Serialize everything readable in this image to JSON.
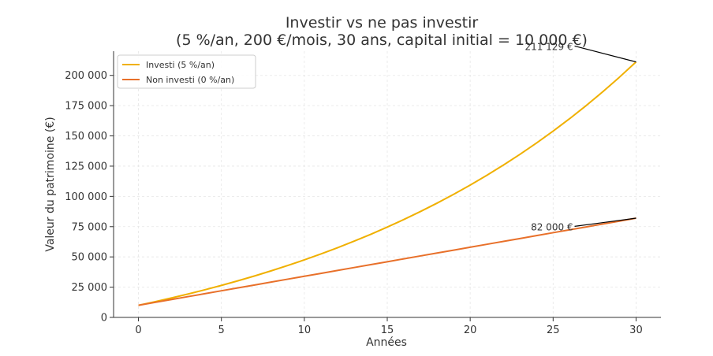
{
  "chart_data": {
    "type": "line",
    "title_line1": "Investir vs ne pas investir",
    "title_line2": "(5 %/an, 200 €/mois, 30 ans, capital initial = 10 000 €)",
    "xlabel": "Années",
    "ylabel": "Valeur du patrimoine (€)",
    "xlim": [
      -1.5,
      31.5
    ],
    "ylim": [
      0,
      220000
    ],
    "xticks": [
      0,
      5,
      10,
      15,
      20,
      25,
      30
    ],
    "xtick_labels": [
      "0",
      "5",
      "10",
      "15",
      "20",
      "25",
      "30"
    ],
    "yticks": [
      0,
      25000,
      50000,
      75000,
      100000,
      125000,
      150000,
      175000,
      200000
    ],
    "ytick_labels": [
      "0",
      "25 000",
      "50 000",
      "75 000",
      "100 000",
      "125 000",
      "150 000",
      "175 000",
      "200 000"
    ],
    "grid": true,
    "legend_position": "top-left",
    "x": [
      0,
      1,
      2,
      3,
      4,
      5,
      6,
      7,
      8,
      9,
      10,
      11,
      12,
      13,
      14,
      15,
      16,
      17,
      18,
      19,
      20,
      21,
      22,
      23,
      24,
      25,
      26,
      27,
      28,
      29,
      30
    ],
    "series": [
      {
        "name": "Investi (5 %/an)",
        "color": "#f0b000",
        "values": [
          10000,
          12970,
          16092,
          19373,
          22822,
          26447,
          30257,
          34262,
          38472,
          42897,
          47548,
          52437,
          57576,
          62978,
          68656,
          74624,
          80898,
          87492,
          94424,
          101710,
          109369,
          117420,
          125882,
          134778,
          144128,
          153956,
          164287,
          175146,
          186561,
          198559,
          211129
        ]
      },
      {
        "name": "Non investi (0 %/an)",
        "color": "#e8702a",
        "values": [
          10000,
          12400,
          14800,
          17200,
          19600,
          22000,
          24400,
          26800,
          29200,
          31600,
          34000,
          36400,
          38800,
          41200,
          43600,
          46000,
          48400,
          50800,
          53200,
          55600,
          58000,
          60400,
          62800,
          65200,
          67600,
          70000,
          72400,
          74800,
          77200,
          79600,
          82000
        ]
      }
    ],
    "annotations": [
      {
        "text": "211 129 €",
        "point": [
          30,
          211129
        ],
        "text_at": [
          26.2,
          221000
        ]
      },
      {
        "text": "82 000 €",
        "point": [
          30,
          82000
        ],
        "text_at": [
          26.2,
          72000
        ]
      }
    ]
  }
}
